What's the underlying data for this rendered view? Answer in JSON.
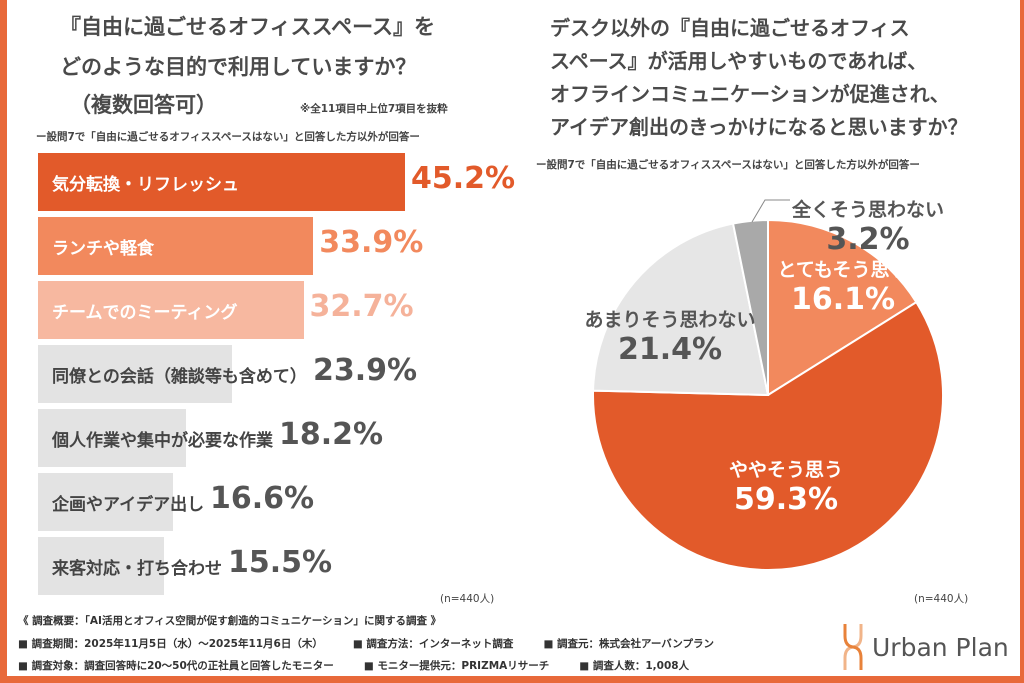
{
  "left": {
    "title_lines": [
      "『自由に過ごせるオフィススペース』を",
      "どのような目的で利用していますか？",
      "（複数回答可）"
    ],
    "note": "※全11項目中上位7項目を抜粋",
    "subtitle": "ー設問7で「自由に過ごせるオフィススペースはない」と回答した方以外が回答ー",
    "n_label": "(n=440人)"
  },
  "right": {
    "title_lines": [
      "デスク以外の『自由に過ごせるオフィス",
      "スペース』が活用しやすいものであれば、",
      "オフラインコミュニケーションが促進され、",
      "アイデア創出のきっかけになると思いますか？"
    ],
    "subtitle": "ー設問7で「自由に過ごせるオフィススペースはない」と回答した方以外が回答ー",
    "n_label": "(n=440人)"
  },
  "chart_data": [
    {
      "type": "bar",
      "orientation": "horizontal",
      "categories": [
        "気分転換・リフレッシュ",
        "ランチや軽食",
        "チームでのミーティング",
        "同僚との会話（雑談等も含めて）",
        "個人作業や集中が必要な作業",
        "企画やアイデア出し",
        "来客対応・打ち合わせ"
      ],
      "values": [
        45.2,
        33.9,
        32.7,
        23.9,
        18.2,
        16.6,
        15.5
      ],
      "value_labels": [
        "45.2%",
        "33.9%",
        "32.7%",
        "23.9%",
        "18.2%",
        "16.6%",
        "15.5%"
      ],
      "bar_colors": [
        "#e25a2a",
        "#f2895d",
        "#f7b8a0",
        "#e3e3e3",
        "#e3e3e3",
        "#e3e3e3",
        "#e3e3e3"
      ],
      "label_colors": [
        "#ffffff",
        "#ffffff",
        "#ffffff",
        "#444444",
        "#444444",
        "#444444",
        "#444444"
      ],
      "value_colors": [
        "#e25a2a",
        "#f2895d",
        "#f5b29a",
        "#555555",
        "#555555",
        "#555555",
        "#555555"
      ]
    },
    {
      "type": "pie",
      "categories": [
        "とてもそう思う",
        "ややそう思う",
        "あまりそう思わない",
        "全くそう思わない"
      ],
      "values": [
        16.1,
        59.3,
        21.4,
        3.2
      ],
      "value_labels": [
        "16.1%",
        "59.3%",
        "21.4%",
        "3.2%"
      ],
      "colors": [
        "#f2895d",
        "#e25a2a",
        "#e6e6e6",
        "#a9a9a9"
      ]
    }
  ],
  "footer": {
    "heading": "《 調査概要：「AI活用とオフィス空間が促す創造的コミュニケーション」に関する調査 》",
    "row1": [
      "■ 調査期間：2025年11月5日（水）～2025年11月6日（木）",
      "■ 調査方法：インターネット調査",
      "■ 調査元：株式会社アーバンプラン"
    ],
    "row2": [
      "■ 調査対象：調査回答時に20～50代の正社員と回答したモニター",
      "■ モニター提供元：PRIZMAリサーチ",
      "■ 調査人数：1,008人"
    ]
  },
  "logo": {
    "text": "Urban Plan",
    "color": "#e8823a"
  }
}
